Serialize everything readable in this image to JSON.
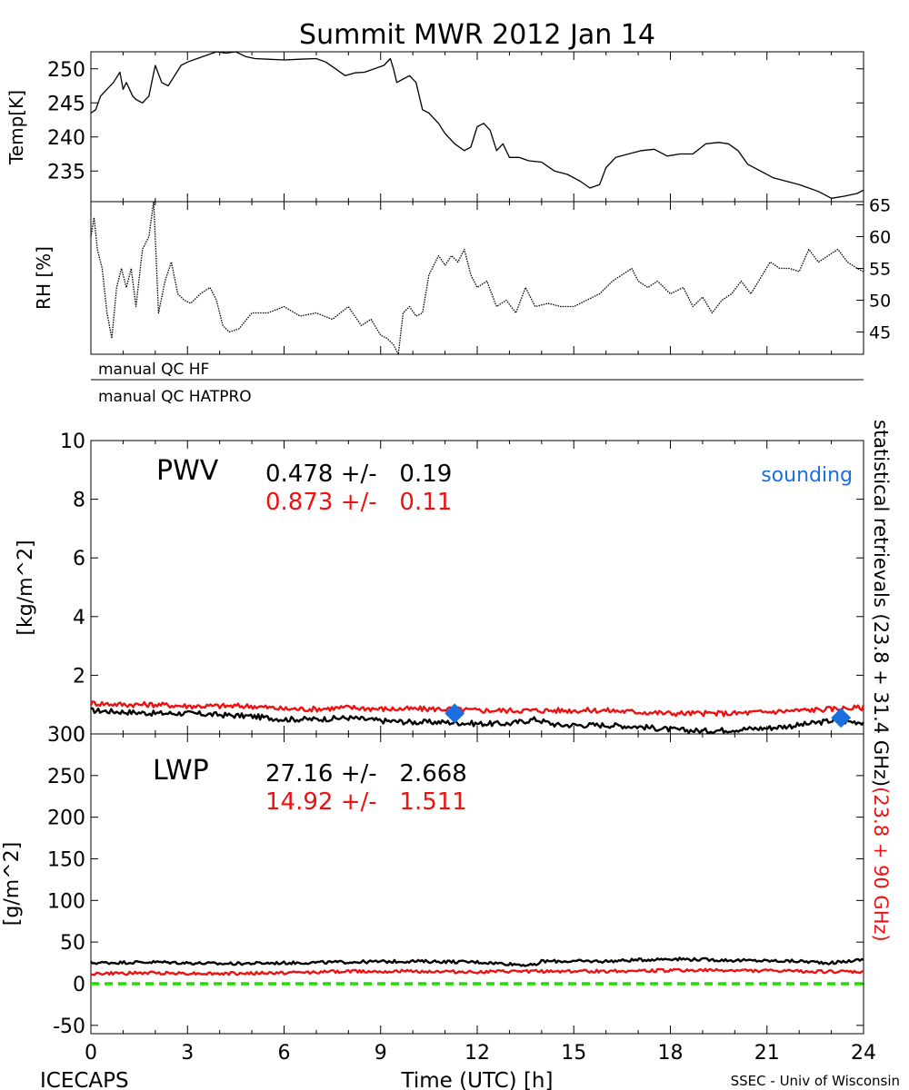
{
  "title": "Summit MWR 2012 Jan 14",
  "footer": {
    "left": "ICECAPS",
    "right": "SSEC - Univ of Wisconsin"
  },
  "colors": {
    "black": "#000000",
    "red": "#ee1111",
    "blue": "#1a6fe0",
    "green": "#22dd00"
  },
  "chart_data": [
    {
      "type": "line",
      "panel": "temp",
      "ylabel": "Temp[K]",
      "xlim": [
        0,
        24
      ],
      "ylim": [
        230.5,
        252.5
      ],
      "yticks": [
        235,
        240,
        245,
        250
      ],
      "series": [
        {
          "x": [
            0,
            0.15,
            0.3,
            0.5,
            0.7,
            0.9,
            1.0,
            1.1,
            1.2,
            1.3,
            1.4,
            1.6,
            1.8,
            2.0,
            2.2,
            2.4,
            2.6,
            2.8,
            3.0,
            3.3,
            3.6,
            3.9,
            4.2,
            4.5,
            4.8,
            5.1,
            5.5,
            6.0,
            6.5,
            7.0,
            7.3,
            7.6,
            7.9,
            8.2,
            8.5,
            8.8,
            9.1,
            9.3,
            9.4,
            9.5,
            9.7,
            9.9,
            10.1,
            10.3,
            10.5,
            10.6,
            10.8,
            11.0,
            11.3,
            11.6,
            11.8,
            12.0,
            12.2,
            12.4,
            12.6,
            12.8,
            13.0,
            13.3,
            13.6,
            14.0,
            14.4,
            14.8,
            15.2,
            15.5,
            15.8,
            16.0,
            16.3,
            16.7,
            17.1,
            17.5,
            17.9,
            18.3,
            18.7,
            19.1,
            19.5,
            19.8,
            20.1,
            20.4,
            20.8,
            21.2,
            21.6,
            22.0,
            22.3,
            22.6,
            23.0,
            23.4,
            23.8,
            24.0
          ],
          "y": [
            243.5,
            244,
            246,
            247,
            248,
            249.5,
            247,
            248,
            247,
            246,
            245.5,
            245,
            246,
            250.5,
            248,
            247.5,
            249,
            250.5,
            251,
            251.5,
            252,
            252.5,
            252.3,
            252.5,
            251.8,
            251.5,
            251.4,
            251.3,
            251.4,
            251.5,
            251,
            250,
            249,
            249.4,
            249.5,
            250,
            250.5,
            251.5,
            250,
            248,
            248.5,
            249,
            248,
            244,
            243.5,
            243,
            242,
            240.5,
            239,
            238,
            238.5,
            241.5,
            242,
            241,
            238,
            239,
            237,
            237,
            236.5,
            236.3,
            235,
            234.5,
            233.5,
            232.5,
            233,
            235.5,
            237,
            237.5,
            238,
            238.2,
            237.2,
            237.5,
            237.5,
            239,
            239.2,
            239,
            238,
            236,
            235,
            234,
            233.5,
            233,
            232.5,
            232,
            231,
            231.3,
            231.7,
            232.2
          ]
        }
      ]
    },
    {
      "type": "line",
      "panel": "rh",
      "ylabel": "RH [%]",
      "xlim": [
        0,
        24
      ],
      "ylim": [
        41.5,
        65.5
      ],
      "yticks": [
        45,
        50,
        55,
        60,
        65
      ],
      "series": [
        {
          "x": [
            0,
            0.1,
            0.2,
            0.35,
            0.5,
            0.65,
            0.8,
            0.95,
            1.1,
            1.25,
            1.4,
            1.6,
            1.8,
            1.95,
            2.1,
            2.3,
            2.5,
            2.7,
            2.9,
            3.1,
            3.4,
            3.7,
            3.9,
            4.1,
            4.3,
            4.6,
            5.0,
            5.5,
            6.0,
            6.5,
            7.0,
            7.5,
            8.0,
            8.4,
            8.7,
            9.0,
            9.2,
            9.4,
            9.55,
            9.7,
            9.9,
            10.1,
            10.3,
            10.5,
            10.8,
            11.0,
            11.2,
            11.4,
            11.6,
            11.8,
            12.0,
            12.3,
            12.6,
            12.9,
            13.2,
            13.5,
            13.8,
            14.2,
            14.6,
            15.0,
            15.4,
            15.8,
            16.2,
            16.5,
            16.8,
            17.0,
            17.3,
            17.6,
            18.0,
            18.4,
            18.7,
            19.0,
            19.3,
            19.6,
            19.9,
            20.2,
            20.5,
            20.8,
            21.1,
            21.4,
            21.7,
            22.0,
            22.3,
            22.6,
            22.9,
            23.2,
            23.5,
            23.8,
            24.0
          ],
          "y": [
            60,
            63,
            58,
            55,
            48,
            44,
            52,
            55,
            52,
            55,
            49,
            58,
            60,
            65.5,
            48,
            53,
            56,
            51,
            50,
            49.5,
            51,
            52,
            50,
            46,
            45,
            45.5,
            48,
            48,
            49,
            47.5,
            48,
            47,
            49,
            46,
            47,
            44.5,
            44,
            43,
            41.5,
            48,
            49,
            47.5,
            48,
            54,
            57,
            55.5,
            57,
            56,
            58,
            54,
            52,
            53,
            49,
            50,
            48,
            52,
            49,
            49.5,
            49,
            49,
            50,
            51,
            53,
            54,
            55,
            53,
            52,
            53,
            51,
            52,
            49,
            50.5,
            48,
            50,
            51,
            53,
            51,
            53.5,
            56,
            55,
            55,
            54.5,
            58,
            56,
            57,
            58,
            56,
            55,
            54.5
          ]
        }
      ]
    },
    {
      "type": "line",
      "panel": "pwv",
      "ylabel": "[kg/m^2]",
      "label": "PWV",
      "xlim": [
        0,
        24
      ],
      "ylim": [
        0,
        10
      ],
      "yticks": [
        0,
        2,
        4,
        6,
        8,
        10
      ],
      "stats": [
        {
          "color": "black",
          "text": "0.478 +/-   0.19"
        },
        {
          "color": "red",
          "text": "0.873 +/-   0.11"
        }
      ],
      "legend_text": "sounding",
      "series": [
        {
          "color": "black",
          "x": [
            0,
            1,
            2,
            3,
            4,
            5,
            6,
            7,
            8,
            9,
            10,
            11,
            12,
            13,
            13.8,
            14.5,
            15,
            16,
            17,
            18,
            19,
            20,
            21,
            22,
            23,
            24
          ],
          "y": [
            0.8,
            0.75,
            0.7,
            0.7,
            0.65,
            0.6,
            0.5,
            0.5,
            0.55,
            0.45,
            0.4,
            0.4,
            0.35,
            0.35,
            0.5,
            0.3,
            0.3,
            0.3,
            0.25,
            0.15,
            0.1,
            0.15,
            0.2,
            0.3,
            0.45,
            0.4
          ]
        },
        {
          "color": "red",
          "x": [
            0,
            1,
            2,
            3,
            4,
            5,
            6,
            7,
            8,
            9,
            10,
            11,
            12,
            13,
            14,
            15,
            16,
            17,
            18,
            19,
            20,
            21,
            22,
            23,
            24
          ],
          "y": [
            1.05,
            1.0,
            1.0,
            0.95,
            0.95,
            0.95,
            0.85,
            0.85,
            0.9,
            0.85,
            0.85,
            0.85,
            0.8,
            0.8,
            0.8,
            0.8,
            0.8,
            0.75,
            0.7,
            0.7,
            0.7,
            0.75,
            0.8,
            0.85,
            0.9
          ]
        }
      ],
      "sounding": {
        "x": [
          11.3,
          23.3
        ],
        "y": [
          0.7,
          0.55
        ]
      }
    },
    {
      "type": "line",
      "panel": "lwp",
      "ylabel": "[g/m^2]",
      "label": "LWP",
      "xlabel": "Time (UTC) [h]",
      "xlim": [
        0,
        24
      ],
      "xticks": [
        0,
        3,
        6,
        9,
        12,
        15,
        18,
        21,
        24
      ],
      "ylim": [
        -60,
        300
      ],
      "yticks": [
        -50,
        0,
        50,
        100,
        150,
        200,
        250,
        300
      ],
      "stats": [
        {
          "color": "black",
          "text": "27.16 +/-   2.668"
        },
        {
          "color": "red",
          "text": "14.92 +/-   1.511"
        }
      ],
      "series": [
        {
          "color": "black",
          "x": [
            0,
            2,
            4,
            6,
            8,
            10,
            12,
            13.8,
            14,
            16,
            18,
            20,
            22,
            23,
            24
          ],
          "y": [
            25,
            26,
            24,
            25,
            26,
            27,
            26,
            22,
            27,
            27,
            30,
            28,
            27,
            25,
            29
          ]
        },
        {
          "color": "red",
          "x": [
            0,
            2,
            4,
            6,
            8,
            10,
            12,
            14,
            16,
            18,
            20,
            22,
            24
          ],
          "y": [
            12,
            13,
            12,
            13,
            15,
            15,
            14,
            15,
            15,
            16,
            16,
            15,
            14
          ]
        },
        {
          "color": "green",
          "x": [
            0,
            24
          ],
          "y": [
            0,
            0
          ]
        }
      ]
    }
  ],
  "qc": [
    "manual QC HF",
    "manual QC HATPRO"
  ],
  "right_label": {
    "black": "statistical retrievals (23.8 + 31.4 GHz)",
    "red": "(23.8 + 90 GHz)"
  }
}
